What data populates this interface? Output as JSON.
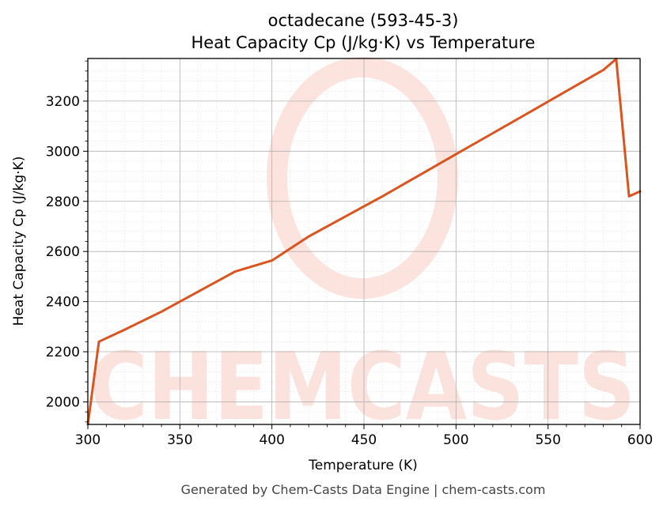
{
  "chart_data": {
    "type": "line",
    "title": "octadecane (593-45-3)",
    "subtitle": "Heat Capacity Cp (J/kg·K) vs Temperature",
    "xlabel": "Temperature (K)",
    "ylabel": "Heat Capacity Cp (J/kg·K)",
    "xlim": [
      300,
      600
    ],
    "ylim": [
      1910,
      3370
    ],
    "x_ticks": [
      300,
      350,
      400,
      450,
      500,
      550,
      600
    ],
    "y_ticks": [
      2000,
      2200,
      2400,
      2600,
      2800,
      3000,
      3200
    ],
    "grid": true,
    "series": [
      {
        "color": "#d9541e",
        "x": [
          300,
          306,
          320,
          340,
          360,
          380,
          400,
          420,
          440,
          460,
          480,
          500,
          520,
          540,
          560,
          580,
          587,
          594,
          600
        ],
        "y": [
          1910,
          2240,
          2288,
          2360,
          2440,
          2520,
          2564,
          2660,
          2740,
          2820,
          2904,
          2988,
          3072,
          3156,
          3240,
          3324,
          3368,
          2820,
          2840
        ]
      }
    ]
  },
  "watermark": {
    "text": "CHEMCASTS",
    "color": "#fcd9d2"
  },
  "footer": {
    "text": "Generated by Chem-Casts Data Engine | chem-casts.com"
  }
}
